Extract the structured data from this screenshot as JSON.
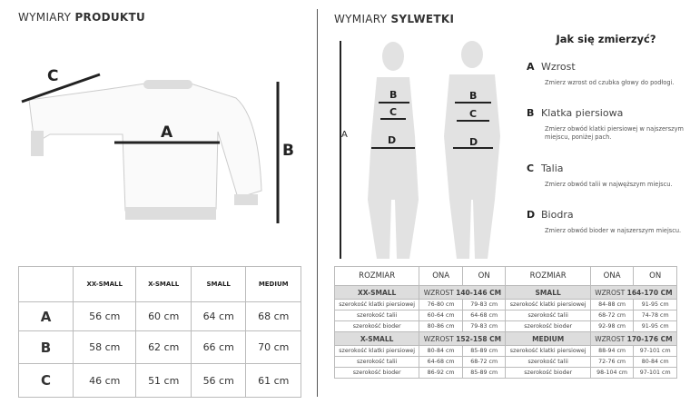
{
  "product": {
    "title_light": "WYMIARY",
    "title_bold": "PRODUKTU",
    "labels": {
      "a": "A",
      "b": "B",
      "c": "C"
    },
    "table": {
      "headers": [
        "XX-SMALL",
        "X-SMALL",
        "SMALL",
        "MEDIUM"
      ],
      "rows": [
        {
          "label": "A",
          "values": [
            "56 cm",
            "60 cm",
            "64 cm",
            "68 cm"
          ]
        },
        {
          "label": "B",
          "values": [
            "58 cm",
            "62 cm",
            "66 cm",
            "70 cm"
          ]
        },
        {
          "label": "C",
          "values": [
            "46 cm",
            "51 cm",
            "56 cm",
            "61 cm"
          ]
        }
      ]
    }
  },
  "silhouette": {
    "title_light": "WYMIARY",
    "title_bold": "SYLWETKI",
    "labels": {
      "a": "A",
      "b": "B",
      "c": "C",
      "d": "D"
    }
  },
  "howto": {
    "title": "Jak się zmierzyć?",
    "items": [
      {
        "letter": "A",
        "name": "Wzrost",
        "desc": "Zmierz wzrost od czubka głowy do podłogi."
      },
      {
        "letter": "B",
        "name": "Klatka piersiowa",
        "desc": "Zmierz obwód klatki piersiowej w najszerszym miejscu, poniżej pach."
      },
      {
        "letter": "C",
        "name": "Talia",
        "desc": "Zmierz obwód talii w najwęższym miejscu."
      },
      {
        "letter": "D",
        "name": "Biodra",
        "desc": "Zmierz obwód bioder w najszerszym miejscu."
      }
    ]
  },
  "body_table": {
    "headers": [
      "ROZMIAR",
      "ONA",
      "ON",
      "ROZMIAR",
      "ONA",
      "ON"
    ],
    "height_label": "WZROST",
    "blocks": [
      {
        "left": {
          "size": "XX-SMALL",
          "height": "140-146 CM"
        },
        "right": {
          "size": "SMALL",
          "height": "164-170 CM"
        },
        "rows": [
          [
            "szerokość klatki piersiowej",
            "76-80 cm",
            "79-83 cm",
            "szerokość klatki piersiowej",
            "84-88 cm",
            "91-95 cm"
          ],
          [
            "szerokość talii",
            "60-64 cm",
            "64-68 cm",
            "szerokość talii",
            "68-72 cm",
            "74-78 cm"
          ],
          [
            "szerokość bioder",
            "80-86 cm",
            "79-83 cm",
            "szerokość bioder",
            "92-98 cm",
            "91-95 cm"
          ]
        ]
      },
      {
        "left": {
          "size": "X-SMALL",
          "height": "152-158 CM"
        },
        "right": {
          "size": "MEDIUM",
          "height": "170-176 CM"
        },
        "rows": [
          [
            "szerokość klatki piersiowej",
            "80-84 cm",
            "85-89 cm",
            "szerokość klatki piersiowej",
            "88-94 cm",
            "97-101 cm"
          ],
          [
            "szerokość talii",
            "64-68 cm",
            "68-72 cm",
            "szerokość talii",
            "72-76 cm",
            "80-84 cm"
          ],
          [
            "szerokość bioder",
            "86-92 cm",
            "85-89 cm",
            "szerokość bioder",
            "98-104 cm",
            "97-101 cm"
          ]
        ]
      }
    ]
  }
}
